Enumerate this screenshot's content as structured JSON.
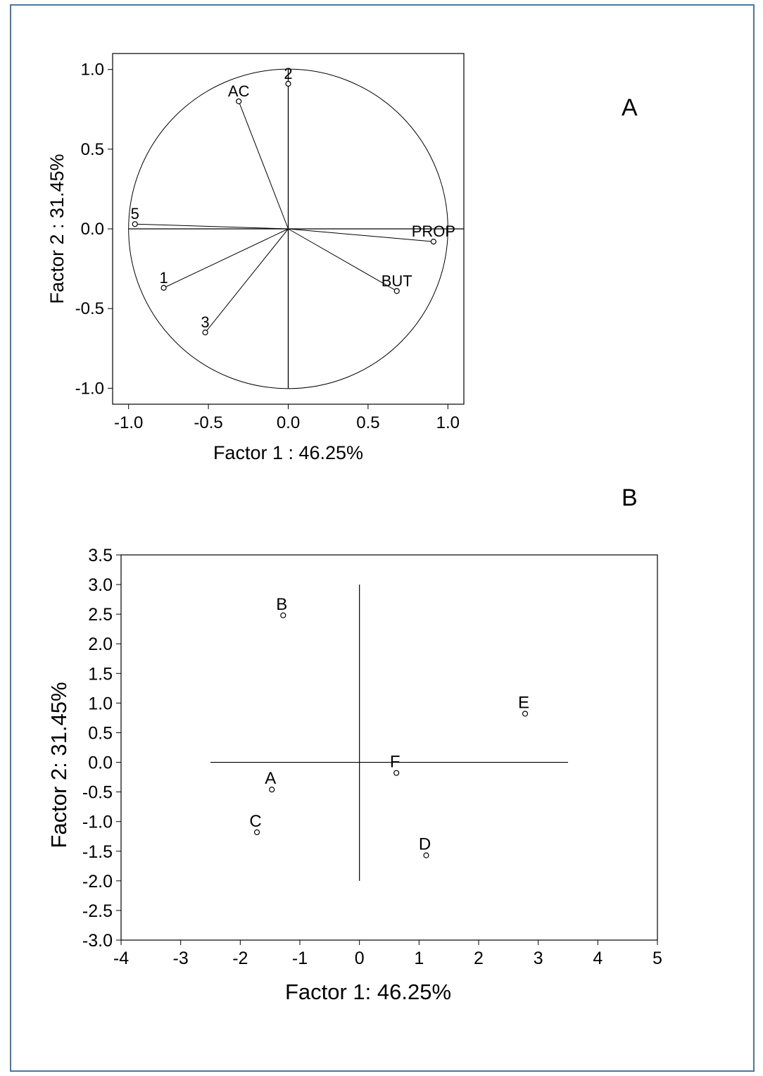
{
  "panels": {
    "a_label": "A",
    "b_label": "B"
  },
  "chart_data": [
    {
      "type": "scatter",
      "title": "",
      "xlabel": "Factor 1 : 46.25%",
      "ylabel": "Factor 2 : 31.45%",
      "xlim": [
        -1.1,
        1.1
      ],
      "ylim": [
        -1.1,
        1.1
      ],
      "xticks": [
        "-1.0",
        "-0.5",
        "0.0",
        "0.5",
        "1.0"
      ],
      "yticks": [
        "1.0",
        "0.5",
        "0.0",
        "-0.5",
        "-1.0"
      ],
      "unit_circle": true,
      "vectors_from_origin": true,
      "points": [
        {
          "label": "2",
          "x": 0.0,
          "y": 0.91
        },
        {
          "label": "AC",
          "x": -0.31,
          "y": 0.8
        },
        {
          "label": "5",
          "x": -0.96,
          "y": 0.03
        },
        {
          "label": "PROP",
          "x": 0.91,
          "y": -0.08
        },
        {
          "label": "1",
          "x": -0.78,
          "y": -0.37
        },
        {
          "label": "BUT",
          "x": 0.68,
          "y": -0.39
        },
        {
          "label": "3",
          "x": -0.52,
          "y": -0.65
        }
      ]
    },
    {
      "type": "scatter",
      "title": "",
      "xlabel": "Factor 1: 46.25%",
      "ylabel": "Factor 2: 31.45%",
      "xlim": [
        -4,
        5
      ],
      "ylim": [
        -3.0,
        3.5
      ],
      "xticks": [
        "-4",
        "-3",
        "-2",
        "-1",
        "0",
        "1",
        "2",
        "3",
        "4",
        "5"
      ],
      "yticks": [
        "3.5",
        "3.0",
        "2.5",
        "2.0",
        "1.5",
        "1.0",
        "0.5",
        "0.0",
        "-0.5",
        "-1.0",
        "-1.5",
        "-2.0",
        "-2.5",
        "-3.0"
      ],
      "reference_lines": {
        "horizontal_x_range": [
          -2.5,
          3.5
        ],
        "vertical_y_range": [
          -2.0,
          3.0
        ]
      },
      "points": [
        {
          "label": "B",
          "x": -1.28,
          "y": 2.48
        },
        {
          "label": "E",
          "x": 2.78,
          "y": 0.82
        },
        {
          "label": "F",
          "x": 0.62,
          "y": -0.18
        },
        {
          "label": "A",
          "x": -1.47,
          "y": -0.46
        },
        {
          "label": "C",
          "x": -1.72,
          "y": -1.18
        },
        {
          "label": "D",
          "x": 1.12,
          "y": -1.57
        }
      ]
    }
  ]
}
